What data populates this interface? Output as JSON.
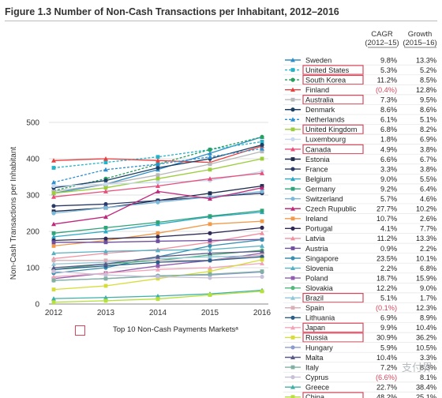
{
  "figure": {
    "title": "Figure 1.3 Number of Non-Cash Transactions per Inhabitant, 2012–2016",
    "legend_note": "Top 10 Non-Cash Payments Marketsᵃ",
    "cagr_header": [
      "CAGR",
      "(2012–15)"
    ],
    "growth_header": [
      "Growth",
      "(2015–16)"
    ],
    "highlight_color": "#d9455b",
    "negative_color": "#d9455b",
    "watermark": "支付界"
  },
  "chart_data": {
    "type": "line",
    "title": "Figure 1.3 Number of Non-Cash Transactions per Inhabitant, 2012–2016",
    "xlabel": "",
    "ylabel": "Non-Cash Transactions per Inhabitant",
    "x": [
      "2012",
      "2013",
      "2014",
      "2015",
      "2016"
    ],
    "ylim": [
      0,
      500
    ],
    "yticks": [
      0,
      100,
      200,
      300,
      400,
      500
    ],
    "grid": true,
    "legend_position": "right",
    "series": [
      {
        "name": "Sweden",
        "color": "#2f8ec7",
        "dash": false,
        "top10": false,
        "cagr": "9.8%",
        "growth": "13.3%",
        "values": [
          305,
          330,
          370,
          415,
          460
        ]
      },
      {
        "name": "United States",
        "color": "#26b3c9",
        "dash": true,
        "top10": true,
        "cagr": "5.3%",
        "growth": "5.2%",
        "values": [
          375,
          390,
          405,
          425,
          447
        ]
      },
      {
        "name": "South Korea",
        "color": "#27a05d",
        "dash": true,
        "top10": true,
        "cagr": "11.2%",
        "growth": "8.5%",
        "values": [
          312,
          345,
          385,
          425,
          460
        ]
      },
      {
        "name": "Finland",
        "color": "#e8403f",
        "dash": false,
        "top10": false,
        "cagr": "(0.4%)",
        "growth": "12.8%",
        "values": [
          395,
          400,
          395,
          390,
          435
        ]
      },
      {
        "name": "Australia",
        "color": "#b8b8b8",
        "dash": false,
        "top10": true,
        "cagr": "7.3%",
        "growth": "9.5%",
        "values": [
          310,
          330,
          355,
          385,
          420
        ]
      },
      {
        "name": "Denmark",
        "color": "#1c3f63",
        "dash": false,
        "top10": false,
        "cagr": "8.6%",
        "growth": "8.6%",
        "values": [
          320,
          340,
          375,
          400,
          438
        ]
      },
      {
        "name": "Netherlands",
        "color": "#2c8fd0",
        "dash": true,
        "top10": false,
        "cagr": "6.1%",
        "growth": "5.1%",
        "values": [
          335,
          370,
          385,
          405,
          428
        ]
      },
      {
        "name": "United Kingdom",
        "color": "#9ccd3c",
        "dash": false,
        "top10": true,
        "cagr": "6.8%",
        "growth": "8.2%",
        "values": [
          305,
          320,
          345,
          370,
          400
        ]
      },
      {
        "name": "Luxembourg",
        "color": "#c8d8ee",
        "dash": false,
        "top10": false,
        "cagr": "1.8%",
        "growth": "6.9%",
        "values": [
          325,
          330,
          335,
          340,
          365
        ]
      },
      {
        "name": "Canada",
        "color": "#e84f7c",
        "dash": false,
        "top10": true,
        "cagr": "4.9%",
        "growth": "3.8%",
        "values": [
          295,
          310,
          325,
          345,
          360
        ]
      },
      {
        "name": "Estonia",
        "color": "#1f2c4d",
        "dash": false,
        "top10": false,
        "cagr": "6.6%",
        "growth": "6.7%",
        "values": [
          255,
          265,
          285,
          305,
          325
        ]
      },
      {
        "name": "France",
        "color": "#2b3a67",
        "dash": false,
        "top10": false,
        "cagr": "3.3%",
        "growth": "3.8%",
        "values": [
          270,
          275,
          285,
          295,
          305
        ]
      },
      {
        "name": "Belgium",
        "color": "#2aa8c4",
        "dash": false,
        "top10": false,
        "cagr": "9.0%",
        "growth": "5.5%",
        "values": [
          185,
          200,
          220,
          240,
          253
        ]
      },
      {
        "name": "Germany",
        "color": "#2fa37a",
        "dash": false,
        "top10": false,
        "cagr": "9.2%",
        "growth": "6.4%",
        "values": [
          195,
          210,
          225,
          242,
          257
        ]
      },
      {
        "name": "Switzerland",
        "color": "#7bb8d9",
        "dash": false,
        "top10": false,
        "cagr": "5.7%",
        "growth": "4.6%",
        "values": [
          250,
          265,
          280,
          295,
          310
        ]
      },
      {
        "name": "Czech Rupublic",
        "color": "#c0287c",
        "dash": false,
        "top10": false,
        "cagr": "27.7%",
        "growth": "10.2%",
        "values": [
          220,
          240,
          310,
          290,
          320
        ]
      },
      {
        "name": "Ireland",
        "color": "#f19a4a",
        "dash": false,
        "top10": false,
        "cagr": "10.7%",
        "growth": "2.6%",
        "values": [
          160,
          175,
          195,
          220,
          228
        ]
      },
      {
        "name": "Portugal",
        "color": "#2e2a55",
        "dash": false,
        "top10": false,
        "cagr": "4.1%",
        "growth": "7.7%",
        "values": [
          175,
          180,
          185,
          195,
          210
        ]
      },
      {
        "name": "Latvia",
        "color": "#f08fa0",
        "dash": false,
        "top10": false,
        "cagr": "11.2%",
        "growth": "13.3%",
        "values": [
          125,
          140,
          150,
          170,
          195
        ]
      },
      {
        "name": "Austria",
        "color": "#6e4fa0",
        "dash": false,
        "top10": false,
        "cagr": "0.9%",
        "growth": "2.2%",
        "values": [
          170,
          170,
          173,
          175,
          178
        ]
      },
      {
        "name": "Singapore",
        "color": "#3a8fb0",
        "dash": false,
        "top10": false,
        "cagr": "23.5%",
        "growth": "10.1%",
        "values": [
          85,
          100,
          130,
          160,
          177
        ]
      },
      {
        "name": "Slovenia",
        "color": "#57b0c4",
        "dash": false,
        "top10": false,
        "cagr": "2.2%",
        "growth": "6.8%",
        "values": [
          140,
          145,
          148,
          150,
          160
        ]
      },
      {
        "name": "Poland",
        "color": "#8f5db0",
        "dash": false,
        "top10": false,
        "cagr": "18.7%",
        "growth": "15.9%",
        "values": [
          70,
          85,
          105,
          120,
          140
        ]
      },
      {
        "name": "Slovakia",
        "color": "#4fb87a",
        "dash": false,
        "top10": false,
        "cagr": "12.2%",
        "growth": "9.0%",
        "values": [
          95,
          110,
          120,
          135,
          148
        ]
      },
      {
        "name": "Brazil",
        "color": "#8fc7d6",
        "dash": false,
        "top10": true,
        "cagr": "5.1%",
        "growth": "1.7%",
        "values": [
          110,
          115,
          125,
          130,
          133
        ]
      },
      {
        "name": "Spain",
        "color": "#d9b0b8",
        "dash": false,
        "top10": false,
        "cagr": "(0.1%)",
        "growth": "12.3%",
        "values": [
          120,
          120,
          120,
          120,
          135
        ]
      },
      {
        "name": "Lithuania",
        "color": "#2b5f8a",
        "dash": false,
        "top10": false,
        "cagr": "6.9%",
        "growth": "8.9%",
        "values": [
          95,
          105,
          115,
          120,
          130
        ]
      },
      {
        "name": "Japan",
        "color": "#f2a4b8",
        "dash": false,
        "top10": true,
        "cagr": "9.9%",
        "growth": "10.4%",
        "values": [
          75,
          85,
          95,
          100,
          112
        ]
      },
      {
        "name": "Russia",
        "color": "#d6dd3a",
        "dash": false,
        "top10": true,
        "cagr": "30.9%",
        "growth": "36.2%",
        "values": [
          40,
          50,
          70,
          90,
          122
        ]
      },
      {
        "name": "Hungary",
        "color": "#8b9bd0",
        "dash": false,
        "top10": false,
        "cagr": "5.9%",
        "growth": "10.5%",
        "values": [
          65,
          70,
          78,
          80,
          88
        ]
      },
      {
        "name": "Malta",
        "color": "#5a5a8a",
        "dash": false,
        "top10": false,
        "cagr": "10.4%",
        "growth": "3.3%",
        "values": [
          100,
          110,
          130,
          140,
          145
        ]
      },
      {
        "name": "Italy",
        "color": "#7fb0a0",
        "dash": false,
        "top10": false,
        "cagr": "7.2%",
        "growth": "8.3%",
        "values": [
          65,
          70,
          77,
          82,
          90
        ]
      },
      {
        "name": "Cyprus",
        "color": "#c7c0d8",
        "dash": false,
        "top10": false,
        "cagr": "(6.6%)",
        "growth": "8.1%",
        "values": [
          90,
          80,
          75,
          72,
          75
        ]
      },
      {
        "name": "Greece",
        "color": "#3fb0a8",
        "dash": false,
        "top10": false,
        "cagr": "22.7%",
        "growth": "38.4%",
        "values": [
          15,
          18,
          22,
          28,
          38
        ]
      },
      {
        "name": "China",
        "color": "#b6e03a",
        "dash": false,
        "top10": true,
        "cagr": "48.2%",
        "growth": "25.1%",
        "values": [
          5,
          9,
          14,
          25,
          35
        ]
      }
    ]
  }
}
